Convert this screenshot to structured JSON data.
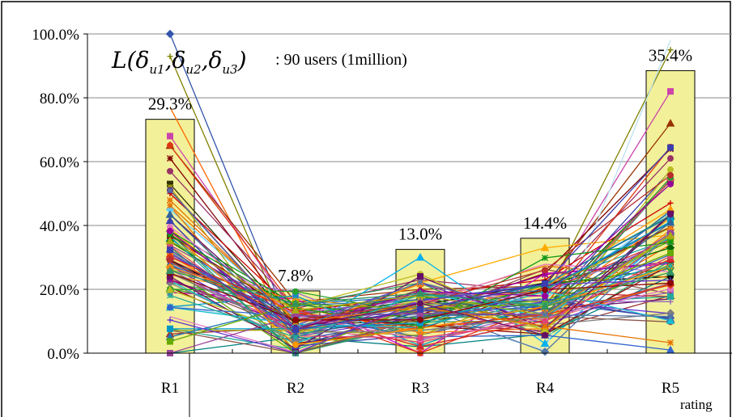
{
  "chart_data": {
    "type": "bar",
    "categories": [
      "R1",
      "R2",
      "R3",
      "R4",
      "R5"
    ],
    "values": [
      29.3,
      7.8,
      13.0,
      14.4,
      35.4
    ],
    "value_labels": [
      "29.3%",
      "7.8%",
      "13.0%",
      "14.4%",
      "35.4%"
    ],
    "bar_scale": 2.5,
    "ylim": [
      0,
      100
    ],
    "yticks": [
      0,
      20,
      40,
      60,
      80,
      100
    ],
    "ytick_labels": [
      "0.0%",
      "20.0%",
      "40.0%",
      "60.0%",
      "80.0%",
      "100.0%"
    ],
    "xlabel": "rating",
    "ylabel": "",
    "title": "",
    "grid": true,
    "bar_color": "#f2f099",
    "legend": {
      "formula_name": "L",
      "formula_vars": [
        "δ",
        "δ",
        "δ"
      ],
      "formula_subscripts": [
        "u1",
        "u2",
        "u3"
      ],
      "text": ": 90 users (1million)",
      "placement": "top-left"
    },
    "user_lines_seed": 1337,
    "user_lines": [
      {
        "values": [
          100,
          4,
          11,
          16,
          11
        ],
        "color": "#3355aa",
        "marker": "diamond"
      },
      {
        "values": [
          93,
          2,
          14,
          17,
          95
        ],
        "color": "#808000",
        "marker": "plus"
      },
      {
        "values": [
          77,
          3,
          8,
          11,
          34
        ],
        "color": "#ff6600",
        "marker": "none"
      },
      {
        "values": [
          68,
          12,
          16,
          18,
          82
        ],
        "color": "#cc44aa",
        "marker": "square"
      },
      {
        "values": [
          65,
          16,
          20,
          21,
          72
        ],
        "color": "#993300",
        "marker": "triangle"
      },
      {
        "values": [
          61,
          10,
          12,
          25,
          64
        ],
        "color": "#800000",
        "marker": "star"
      },
      {
        "values": [
          57,
          14,
          23,
          19,
          61
        ],
        "color": "#993366",
        "marker": "circle"
      },
      {
        "values": [
          53,
          9,
          10,
          14,
          54
        ],
        "color": "#333300",
        "marker": "square"
      },
      {
        "values": [
          50,
          13,
          18,
          23,
          47
        ],
        "color": "#cc0000",
        "marker": "plus"
      },
      {
        "values": [
          45,
          11,
          15,
          17,
          44
        ],
        "color": "#66ccff",
        "marker": "diamond"
      },
      {
        "values": [
          39,
          7,
          22,
          33,
          37
        ],
        "color": "#ffaa00",
        "marker": "triangle"
      },
      {
        "values": [
          36,
          6,
          30,
          3,
          38
        ],
        "color": "#00b0f0",
        "marker": "triangle"
      },
      {
        "values": [
          35,
          10,
          17,
          21,
          33
        ],
        "color": "#006600",
        "marker": "diamond"
      },
      {
        "values": [
          29,
          10,
          15,
          22,
          24
        ],
        "color": "#000000",
        "marker": "circle"
      },
      {
        "values": [
          26,
          19,
          4,
          13,
          19
        ],
        "color": "#9966cc",
        "marker": "square"
      },
      {
        "values": [
          22,
          15,
          22,
          5,
          29
        ],
        "color": "#339966",
        "marker": "none"
      },
      {
        "values": [
          15,
          9,
          12,
          1,
          98
        ],
        "color": "#bbe0ef",
        "marker": "none"
      },
      {
        "values": [
          6,
          8,
          9,
          7,
          18
        ],
        "color": "#993333",
        "marker": "triangle"
      },
      {
        "values": [
          0,
          5,
          2,
          6,
          24
        ],
        "color": "#008080",
        "marker": "none"
      },
      {
        "values": [
          19,
          17,
          0,
          25,
          28
        ],
        "color": "#cc00cc",
        "marker": "star"
      }
    ]
  }
}
